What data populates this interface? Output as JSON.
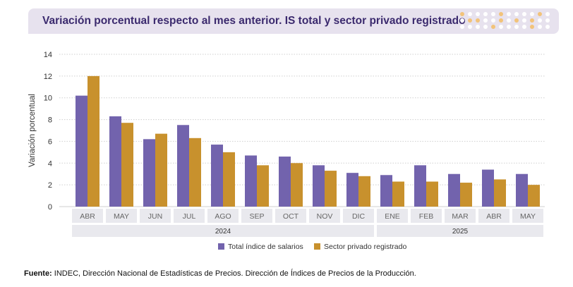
{
  "header": {
    "title": "Variación porcentual respecto al mes anterior. IS total y sector privado registrado"
  },
  "colors": {
    "series1": "#7263ad",
    "series2": "#c8912d",
    "title_bg": "#e7e2ee",
    "title_text": "#3b2a6e",
    "accent_dot": "#f2c37a"
  },
  "chart_data": {
    "type": "bar",
    "ylabel": "Variación porcentual",
    "xlabel": "",
    "ylim": [
      0,
      14
    ],
    "yticks": [
      0,
      2,
      4,
      6,
      8,
      10,
      12,
      14
    ],
    "grid": true,
    "legend_position": "bottom",
    "categories": [
      "ABR",
      "MAY",
      "JUN",
      "JUL",
      "AGO",
      "SEP",
      "OCT",
      "NOV",
      "DIC",
      "ENE",
      "FEB",
      "MAR",
      "ABR",
      "MAY"
    ],
    "year_groups": [
      {
        "label": "2024",
        "count": 9
      },
      {
        "label": "2025",
        "count": 5
      }
    ],
    "series": [
      {
        "name": "Total índice de salarios",
        "values": [
          10.2,
          8.3,
          6.2,
          7.5,
          5.7,
          4.7,
          4.6,
          3.8,
          3.1,
          2.9,
          3.8,
          3.0,
          3.4,
          3.0
        ]
      },
      {
        "name": "Sector privado registrado",
        "values": [
          12.0,
          7.7,
          6.7,
          6.3,
          5.0,
          3.8,
          4.0,
          3.3,
          2.8,
          2.3,
          2.3,
          2.2,
          2.5,
          2.0
        ]
      }
    ]
  },
  "footer": {
    "source_label": "Fuente:",
    "source_text": " INDEC, Dirección Nacional de Estadísticas de Precios. Dirección de Índices de Precios de la Producción."
  }
}
